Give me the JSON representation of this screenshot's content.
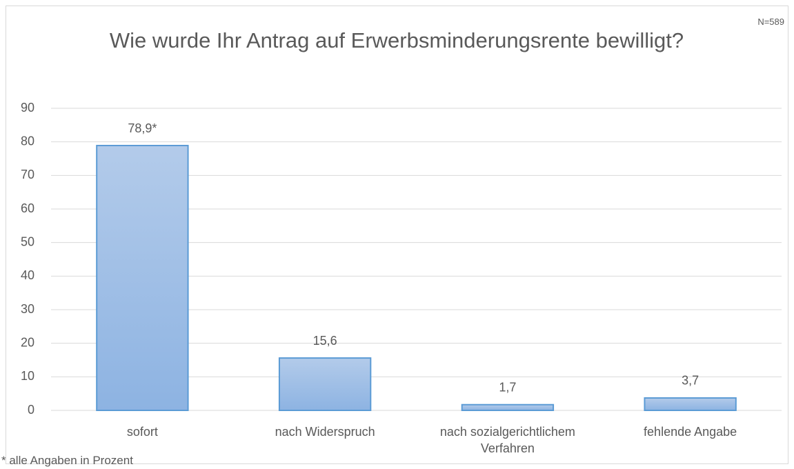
{
  "chart_data": {
    "type": "bar",
    "title": "Wie wurde Ihr Antrag auf Erwerbsminderungsrente bewilligt?",
    "annotations": [
      "N=589",
      "* alle Angaben in Prozent"
    ],
    "categories": [
      "sofort",
      "nach Widerspruch",
      "nach sozialgerichtlichem Verfahren",
      "fehlende Angabe"
    ],
    "values": [
      78.9,
      15.6,
      1.7,
      3.7
    ],
    "value_labels": [
      "78,9*",
      "15,6",
      "1,7",
      "3,7"
    ],
    "color": "#5b9bd5",
    "ylim": [
      0,
      90
    ],
    "yticks": [
      0,
      10,
      20,
      30,
      40,
      50,
      60,
      70,
      80,
      90
    ],
    "grid": true
  }
}
